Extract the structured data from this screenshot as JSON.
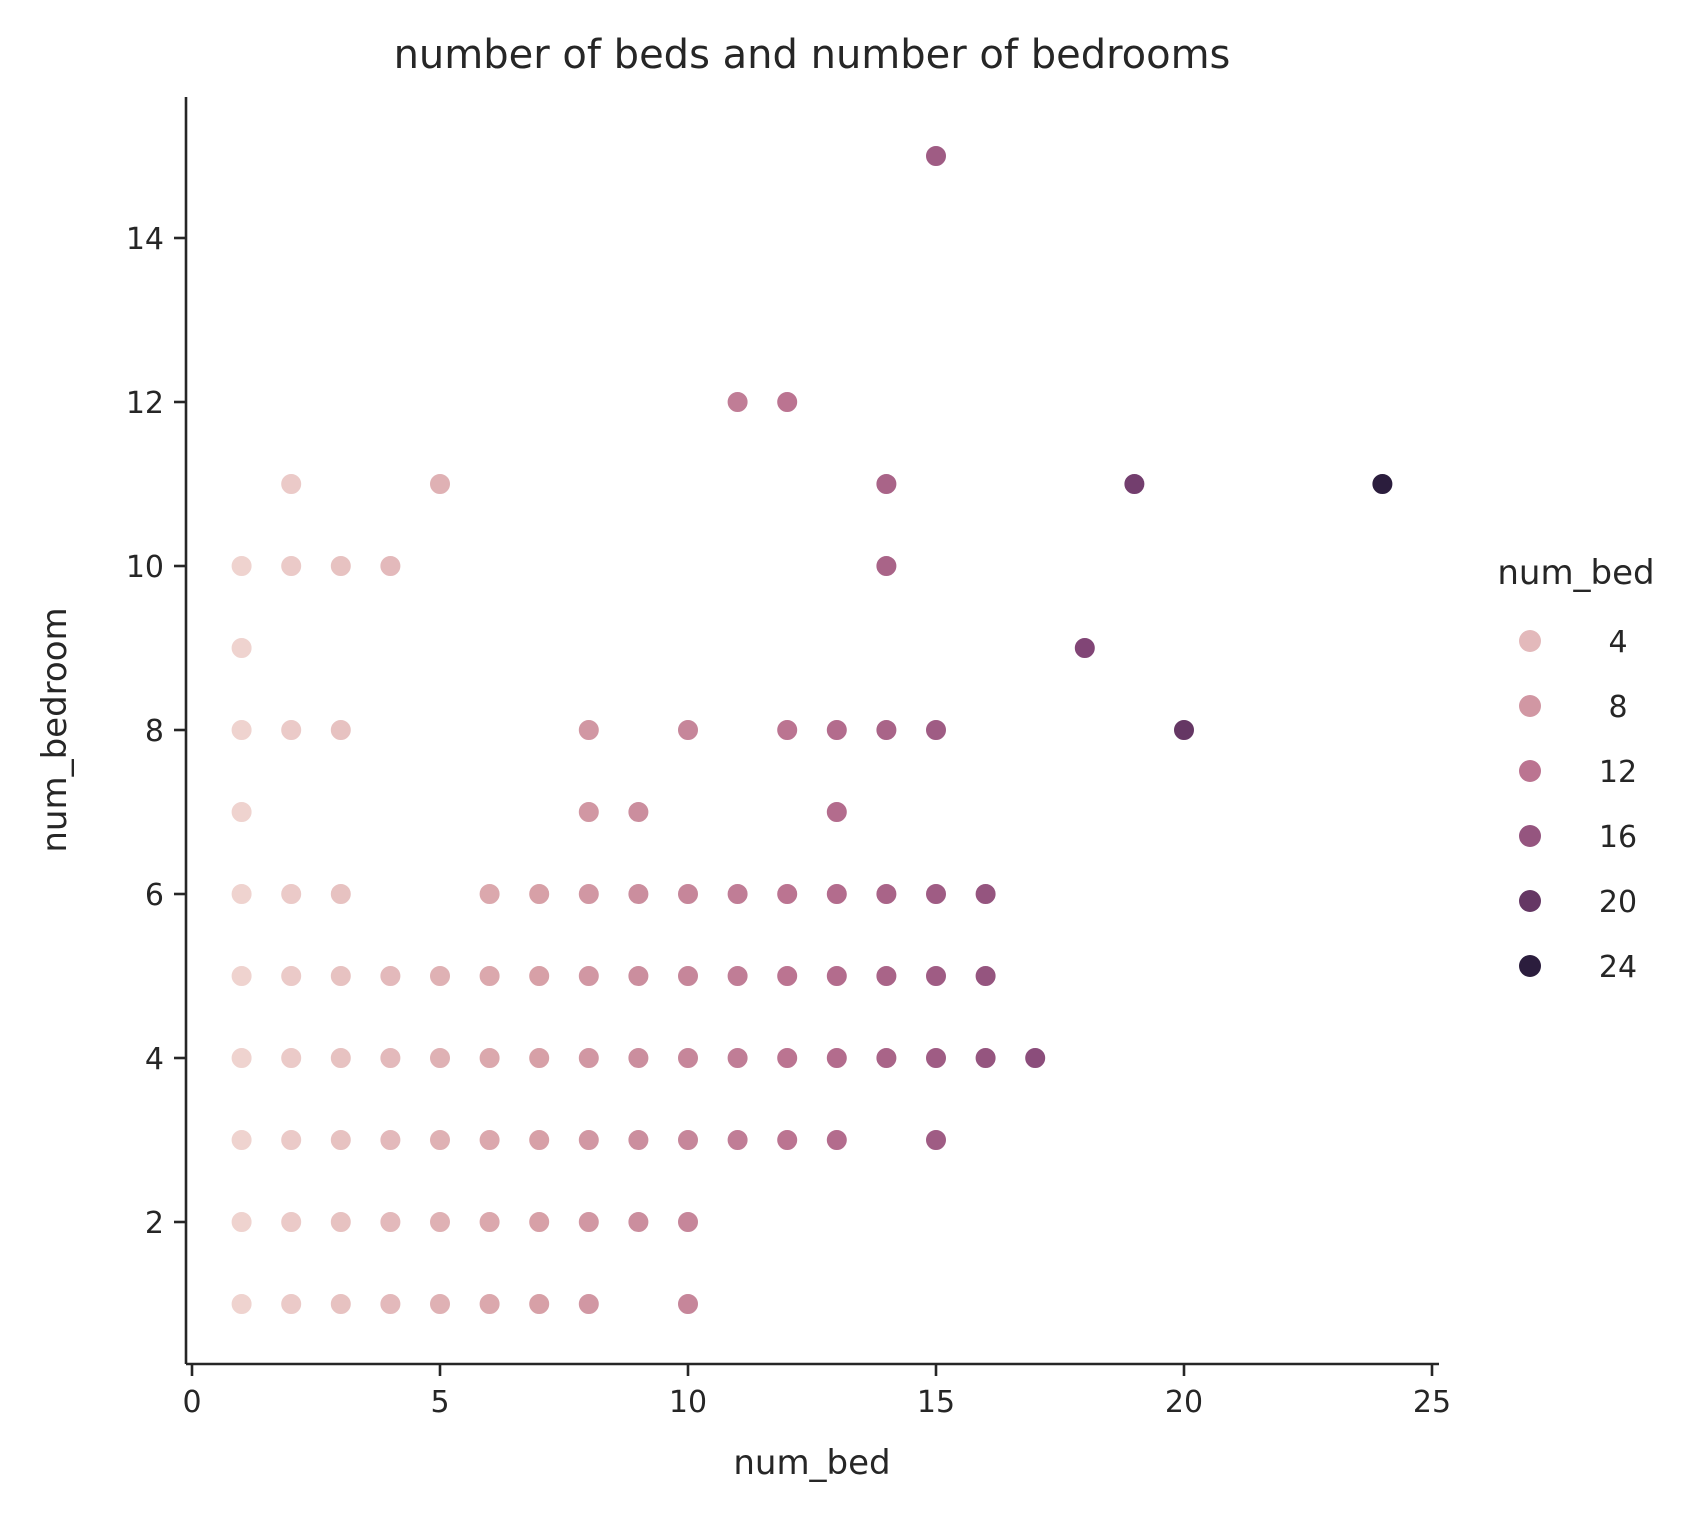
{
  "chart_data": {
    "type": "scatter",
    "title": "number of beds and number of bedrooms",
    "xlabel": "num_bed",
    "ylabel": "num_bedroom",
    "xlim": [
      -0.2,
      25.2
    ],
    "ylim": [
      0.3,
      15.7
    ],
    "xticks": [
      0,
      5,
      10,
      15,
      20,
      25
    ],
    "yticks": [
      2,
      4,
      6,
      8,
      10,
      12,
      14
    ],
    "grid": false,
    "legend": {
      "title": "num_bed",
      "placement": "right",
      "entries": [
        {
          "label": "4",
          "value": 4
        },
        {
          "label": "8",
          "value": 8
        },
        {
          "label": "12",
          "value": 12
        },
        {
          "label": "16",
          "value": 16
        },
        {
          "label": "20",
          "value": 20
        },
        {
          "label": "24",
          "value": 24
        }
      ]
    },
    "hue_range": [
      1,
      24
    ],
    "colors": {
      "low": "#efd3cf",
      "high": "#2b1d3d"
    },
    "points": [
      [
        1,
        1
      ],
      [
        2,
        1
      ],
      [
        3,
        1
      ],
      [
        4,
        1
      ],
      [
        5,
        1
      ],
      [
        6,
        1
      ],
      [
        7,
        1
      ],
      [
        8,
        1
      ],
      [
        10,
        1
      ],
      [
        1,
        2
      ],
      [
        2,
        2
      ],
      [
        3,
        2
      ],
      [
        4,
        2
      ],
      [
        5,
        2
      ],
      [
        6,
        2
      ],
      [
        7,
        2
      ],
      [
        8,
        2
      ],
      [
        9,
        2
      ],
      [
        10,
        2
      ],
      [
        1,
        3
      ],
      [
        2,
        3
      ],
      [
        3,
        3
      ],
      [
        4,
        3
      ],
      [
        5,
        3
      ],
      [
        6,
        3
      ],
      [
        7,
        3
      ],
      [
        8,
        3
      ],
      [
        9,
        3
      ],
      [
        10,
        3
      ],
      [
        11,
        3
      ],
      [
        12,
        3
      ],
      [
        13,
        3
      ],
      [
        15,
        3
      ],
      [
        1,
        4
      ],
      [
        2,
        4
      ],
      [
        3,
        4
      ],
      [
        4,
        4
      ],
      [
        5,
        4
      ],
      [
        6,
        4
      ],
      [
        7,
        4
      ],
      [
        8,
        4
      ],
      [
        9,
        4
      ],
      [
        10,
        4
      ],
      [
        11,
        4
      ],
      [
        12,
        4
      ],
      [
        13,
        4
      ],
      [
        14,
        4
      ],
      [
        15,
        4
      ],
      [
        16,
        4
      ],
      [
        17,
        4
      ],
      [
        1,
        5
      ],
      [
        2,
        5
      ],
      [
        3,
        5
      ],
      [
        4,
        5
      ],
      [
        5,
        5
      ],
      [
        6,
        5
      ],
      [
        7,
        5
      ],
      [
        8,
        5
      ],
      [
        9,
        5
      ],
      [
        10,
        5
      ],
      [
        11,
        5
      ],
      [
        12,
        5
      ],
      [
        13,
        5
      ],
      [
        14,
        5
      ],
      [
        15,
        5
      ],
      [
        16,
        5
      ],
      [
        1,
        6
      ],
      [
        2,
        6
      ],
      [
        3,
        6
      ],
      [
        6,
        6
      ],
      [
        7,
        6
      ],
      [
        8,
        6
      ],
      [
        9,
        6
      ],
      [
        10,
        6
      ],
      [
        11,
        6
      ],
      [
        12,
        6
      ],
      [
        13,
        6
      ],
      [
        14,
        6
      ],
      [
        15,
        6
      ],
      [
        16,
        6
      ],
      [
        1,
        7
      ],
      [
        8,
        7
      ],
      [
        9,
        7
      ],
      [
        13,
        7
      ],
      [
        1,
        8
      ],
      [
        2,
        8
      ],
      [
        3,
        8
      ],
      [
        8,
        8
      ],
      [
        10,
        8
      ],
      [
        12,
        8
      ],
      [
        13,
        8
      ],
      [
        14,
        8
      ],
      [
        15,
        8
      ],
      [
        20,
        8
      ],
      [
        1,
        9
      ],
      [
        18,
        9
      ],
      [
        1,
        10
      ],
      [
        2,
        10
      ],
      [
        3,
        10
      ],
      [
        4,
        10
      ],
      [
        14,
        10
      ],
      [
        2,
        11
      ],
      [
        5,
        11
      ],
      [
        14,
        11
      ],
      [
        19,
        11
      ],
      [
        24,
        11
      ],
      [
        11,
        12
      ],
      [
        12,
        12
      ],
      [
        15,
        15
      ]
    ]
  }
}
